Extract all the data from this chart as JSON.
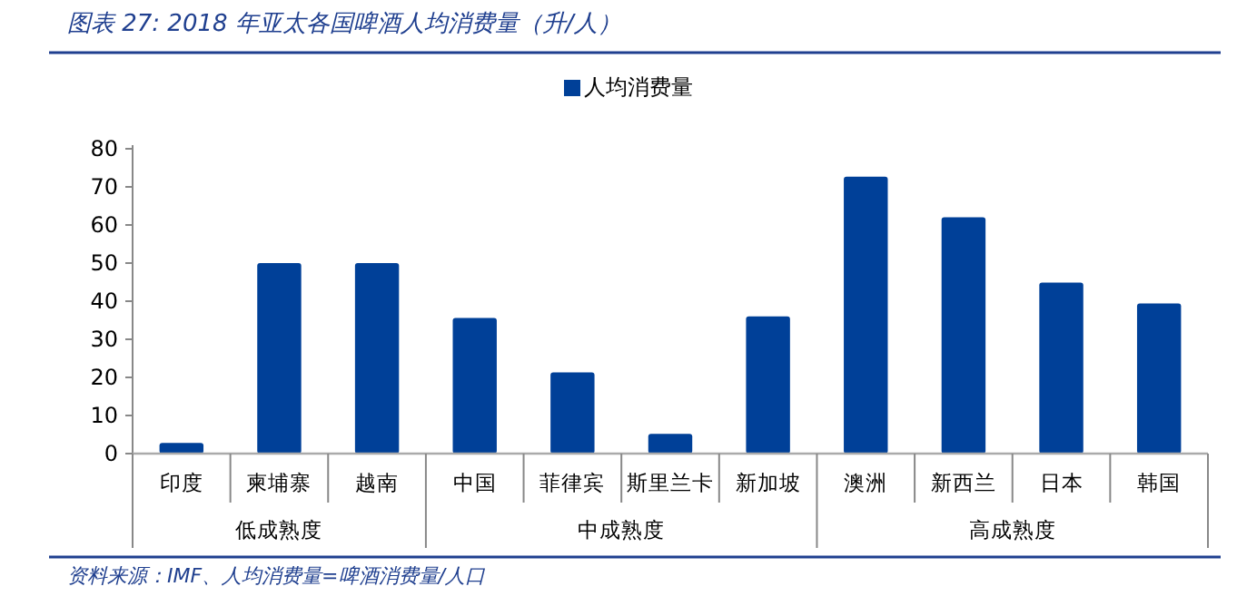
{
  "chart_data": {
    "type": "bar",
    "title": "图表 27:  2018 年亚太各国啤酒人均消费量（升/人）",
    "categories": [
      "印度",
      "柬埔寨",
      "越南",
      "中国",
      "菲律宾",
      "斯里兰卡",
      "新加坡",
      "澳洲",
      "新西兰",
      "日本",
      "韩国"
    ],
    "series": [
      {
        "name": "人均消费量",
        "color": "#004098",
        "values": [
          2.8,
          50,
          50,
          35.6,
          21.3,
          5.2,
          36,
          72.7,
          62,
          44.9,
          39.4
        ]
      }
    ],
    "ylim": [
      0,
      80
    ],
    "yticks": [
      0,
      10,
      20,
      30,
      40,
      50,
      60,
      70,
      80
    ],
    "grid": false,
    "legend": "top",
    "annotations": [
      "低成熟度",
      "中成熟度",
      "高成熟度",
      "资料来源：IMF、人均消费量=啤酒消费量/人口"
    ]
  }
}
